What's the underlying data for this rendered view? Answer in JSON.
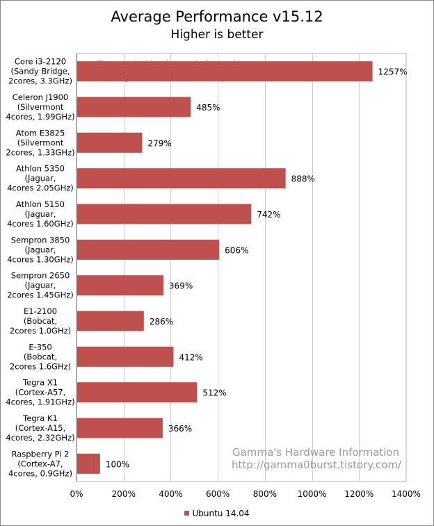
{
  "chart_data": {
    "type": "bar",
    "orientation": "horizontal",
    "title": "Average Performance v15.12",
    "subtitle": "Higher is better",
    "categories": [
      [
        "Core i3-2120",
        "(Sandy Bridge,",
        "2cores, 3.3GHz)"
      ],
      [
        "Celeron J1900",
        "(Silvermont",
        "4cores, 1.99GHz)"
      ],
      [
        "Atom E3825",
        "(Silvermont",
        "2cores, 1.33GHz)"
      ],
      [
        "Athlon 5350",
        "(Jaguar,",
        "4cores 2.05GHz)"
      ],
      [
        "Athlon 5150",
        "(Jaguar,",
        "4cores 1.60GHz)"
      ],
      [
        "Sempron 3850",
        "(Jaguar,",
        "4cores 1.30GHz)"
      ],
      [
        "Sempron 2650",
        "(Jaguar,",
        "2cores 1.45GHz)"
      ],
      [
        "E1-2100",
        "(Bobcat,",
        "2cores 1.0GHz)"
      ],
      [
        "E-350",
        "(Bobcat,",
        "2cores 1.6GHz)"
      ],
      [
        "Tegra X1",
        "(Cortex-A57,",
        "4cores, 1.91GHz)"
      ],
      [
        "Tegra K1",
        "(Cortex-A15,",
        "4cores, 2.32GHz)"
      ],
      [
        "Raspberry Pi 2",
        "(Cortex-A7,",
        "4cores, 0.9GHz)"
      ]
    ],
    "series": [
      {
        "name": "Ubuntu 14.04",
        "color": "#c0504d",
        "values": [
          1257,
          485,
          279,
          888,
          742,
          606,
          369,
          286,
          412,
          512,
          366,
          100
        ],
        "labels": [
          "1257%",
          "485%",
          "279%",
          "888%",
          "742%",
          "606%",
          "369%",
          "286%",
          "412%",
          "512%",
          "366%",
          "100%"
        ]
      }
    ],
    "xlim": [
      0,
      1400
    ],
    "xticks": [
      0,
      200,
      400,
      600,
      800,
      1000,
      1200,
      1400
    ],
    "xtick_labels": [
      "0%",
      "200%",
      "400%",
      "600%",
      "800%",
      "1000%",
      "1200%",
      "1400%"
    ],
    "grid": "vertical",
    "legend_position": "bottom"
  },
  "watermark": {
    "line1": "Gamma's Hardware Information",
    "line2": "http://gamma0burst.tistory.com/"
  }
}
